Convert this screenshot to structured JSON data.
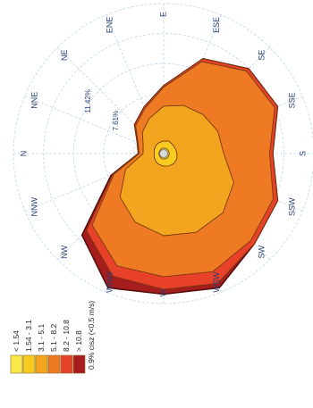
{
  "chart_data": {
    "type": "area",
    "subtype": "wind-rose",
    "rotation": "image rotated 90 degrees counter-clockwise; north points left",
    "directions": [
      "N",
      "NNE",
      "NE",
      "ENE",
      "E",
      "ESE",
      "SE",
      "SSE",
      "S",
      "SSW",
      "SW",
      "WSW",
      "W",
      "WNW",
      "NW",
      "NNW"
    ],
    "ring_labels": [
      {
        "value": 7.61,
        "label": "7.61%"
      },
      {
        "value": 11.42,
        "label": "11.42%"
      }
    ],
    "rlim": [
      0,
      19
    ],
    "series": [
      {
        "name": "> 10.8",
        "color": "#a51d1d",
        "values": [
          3.2,
          3.6,
          5.2,
          6.4,
          8.6,
          13.0,
          15.2,
          15.6,
          13.8,
          15.6,
          16.2,
          18.4,
          17.8,
          18.4,
          14.6,
          7.2
        ]
      },
      {
        "name": "8.2 - 10.8",
        "color": "#e8412a",
        "values": [
          3.2,
          3.6,
          5.2,
          6.4,
          8.6,
          13.0,
          15.2,
          15.6,
          13.8,
          15.6,
          16.2,
          17.8,
          17.2,
          16.8,
          13.8,
          7.0
        ]
      },
      {
        "name": "5.1 - 8.2",
        "color": "#ee7a24",
        "values": [
          3.1,
          3.5,
          5.0,
          6.2,
          8.4,
          12.6,
          14.8,
          15.2,
          13.4,
          15.0,
          15.6,
          16.2,
          15.6,
          15.4,
          12.8,
          6.8
        ]
      },
      {
        "name": "3.1 - 5.1",
        "color": "#f4a51f",
        "values": [
          2.6,
          2.8,
          3.8,
          4.8,
          6.0,
          6.6,
          7.0,
          7.4,
          7.6,
          9.6,
          10.6,
          10.8,
          10.4,
          9.4,
          7.8,
          5.2
        ]
      },
      {
        "name": "1.54 - 3.1",
        "color": "#f7cb1f",
        "values": [
          1.2,
          1.3,
          1.4,
          1.5,
          1.6,
          1.7,
          1.6,
          1.6,
          1.7,
          1.8,
          1.8,
          1.7,
          1.6,
          1.5,
          1.4,
          1.3
        ]
      },
      {
        "name": "< 1.54",
        "color": "#f8e84a",
        "values": [
          0.6,
          0.6,
          0.6,
          0.7,
          0.7,
          0.7,
          0.7,
          0.7,
          0.7,
          0.7,
          0.7,
          0.7,
          0.7,
          0.7,
          0.6,
          0.6
        ]
      }
    ],
    "legend_items": [
      {
        "label": "< 1.54",
        "color": "#f8e84a"
      },
      {
        "label": "1.54 - 3.1",
        "color": "#f7cb1f"
      },
      {
        "label": "3.1 - 5.1",
        "color": "#f4a51f"
      },
      {
        "label": "5.1 - 8.2",
        "color": "#ee7a24"
      },
      {
        "label": "8.2 - 10.8",
        "color": "#e8412a"
      },
      {
        "label": "> 10.8",
        "color": "#a51d1d"
      }
    ],
    "calm_note": "0.9% cisz (<0.5 m/s)",
    "legend_placement": "bottom-left",
    "grid": true,
    "grid_color": "#bfd7ea"
  }
}
